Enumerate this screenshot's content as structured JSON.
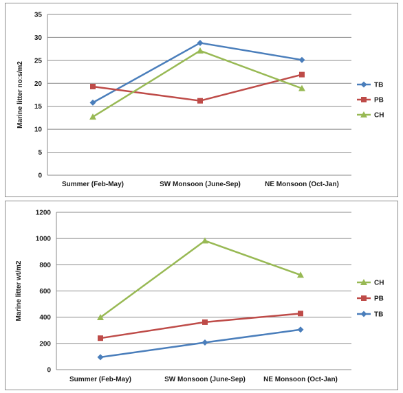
{
  "chart_data": [
    {
      "type": "line",
      "title": "",
      "xlabel": "",
      "ylabel": "Marine litter no:s/m2",
      "ylim": [
        0,
        35
      ],
      "yticks": [
        0,
        5,
        10,
        15,
        20,
        25,
        30,
        35
      ],
      "grid": true,
      "legend": "right",
      "categories": [
        "Summer (Feb-May)",
        "SW Monsoon (June-Sep)",
        "NE Monsoon (Oct-Jan)"
      ],
      "series": [
        {
          "name": "TB",
          "color": "#4a7ebb",
          "marker": "diamond",
          "values": [
            15.8,
            28.8,
            25.1
          ]
        },
        {
          "name": "PB",
          "color": "#be4b48",
          "marker": "square",
          "values": [
            19.3,
            16.2,
            21.9
          ]
        },
        {
          "name": "CH",
          "color": "#98b954",
          "marker": "triangle",
          "values": [
            12.7,
            27.1,
            18.9
          ]
        }
      ]
    },
    {
      "type": "line",
      "title": "",
      "xlabel": "",
      "ylabel": "Marine litter wt/m2",
      "ylim": [
        0,
        1200
      ],
      "yticks": [
        0,
        200,
        400,
        600,
        800,
        1000,
        1200
      ],
      "grid": true,
      "legend": "right",
      "categories": [
        "Summer (Feb-May)",
        "SW Monsoon (June-Sep)",
        "NE Monsoon (Oct-Jan)"
      ],
      "series": [
        {
          "name": "CH",
          "color": "#98b954",
          "marker": "triangle",
          "values": [
            398,
            983,
            722
          ]
        },
        {
          "name": "PB",
          "color": "#be4b48",
          "marker": "square",
          "values": [
            240,
            362,
            428
          ]
        },
        {
          "name": "TB",
          "color": "#4a7ebb",
          "marker": "diamond",
          "values": [
            95,
            207,
            305
          ]
        }
      ]
    }
  ]
}
